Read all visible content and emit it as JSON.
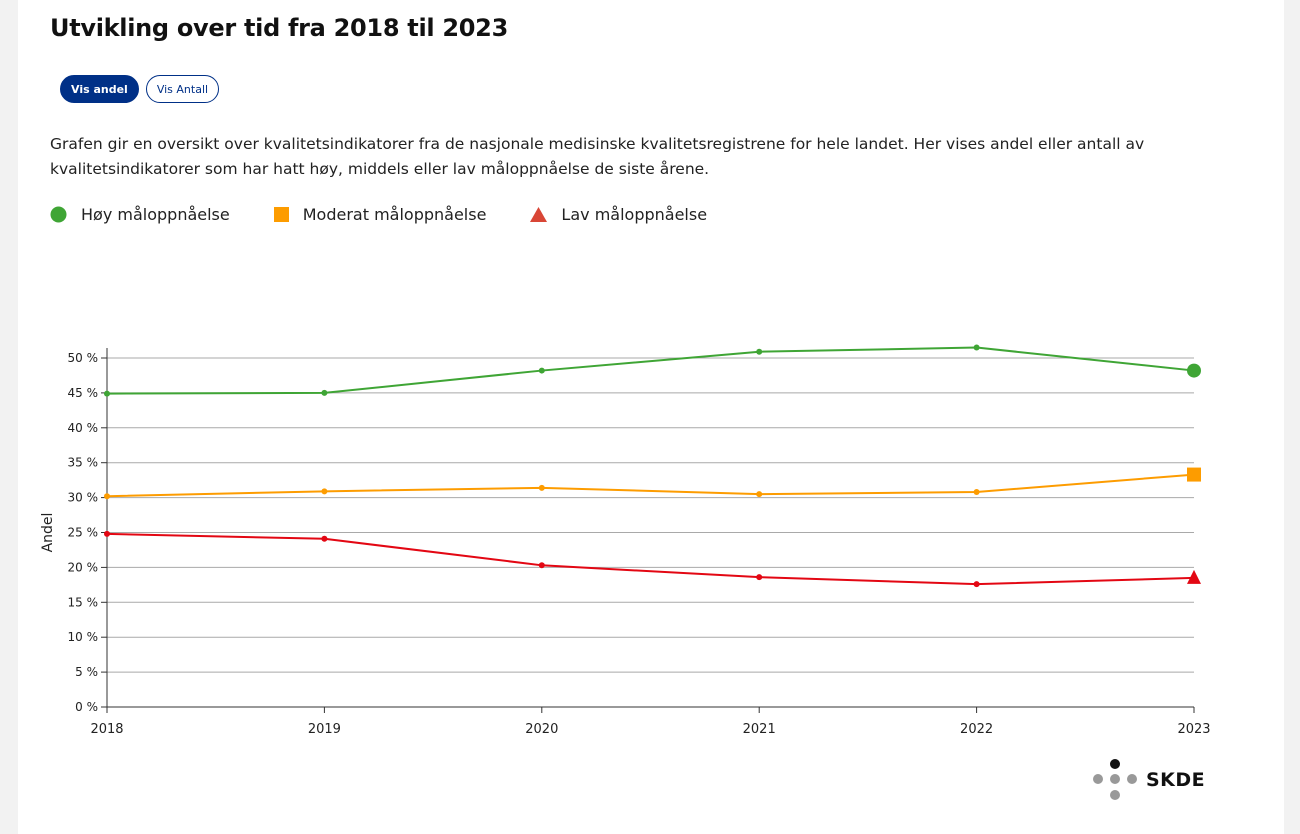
{
  "page": {
    "title": "Utvikling over tid fra 2018 til 2023",
    "toggle": {
      "active_label": "Vis andel",
      "inactive_label": "Vis Antall"
    },
    "description": "Grafen gir en oversikt over kvalitetsindikatorer fra de nasjonale medisinske kvalitetsregistrene for hele landet. Her vises andel eller antall av kvalitetsindikatorer som har hatt høy, middels eller lav måloppnåelse de siste årene.",
    "logo_text": "SKDE"
  },
  "colors": {
    "high": "#3fa535",
    "moderate": "#fd9c00",
    "low": "#e30713",
    "accent": "#003087"
  },
  "chart_data": {
    "type": "line",
    "title": "Utvikling over tid fra 2018 til 2023",
    "xlabel": "",
    "ylabel": "Andel",
    "categories": [
      "2018",
      "2019",
      "2020",
      "2021",
      "2022",
      "2023"
    ],
    "ylim": [
      0,
      50
    ],
    "yticks": [
      0,
      5,
      10,
      15,
      20,
      25,
      30,
      35,
      40,
      45,
      50
    ],
    "ytick_labels": [
      "0 %",
      "5 %",
      "10 %",
      "15 %",
      "20 %",
      "25 %",
      "30 %",
      "35 %",
      "40 %",
      "45 %",
      "50 %"
    ],
    "grid": true,
    "legend_position": "top-left",
    "series": [
      {
        "name": "Høy måloppnåelse",
        "color": "#3fa535",
        "marker": "circle",
        "values": [
          44.9,
          45.0,
          48.2,
          50.9,
          51.5,
          48.2
        ]
      },
      {
        "name": "Moderat måloppnåelse",
        "color": "#fd9c00",
        "marker": "square",
        "values": [
          30.2,
          30.9,
          31.4,
          30.5,
          30.8,
          33.3
        ]
      },
      {
        "name": "Lav måloppnåelse",
        "color": "#e30713",
        "marker": "triangle",
        "values": [
          24.8,
          24.1,
          20.3,
          18.6,
          17.6,
          18.5
        ]
      }
    ]
  }
}
